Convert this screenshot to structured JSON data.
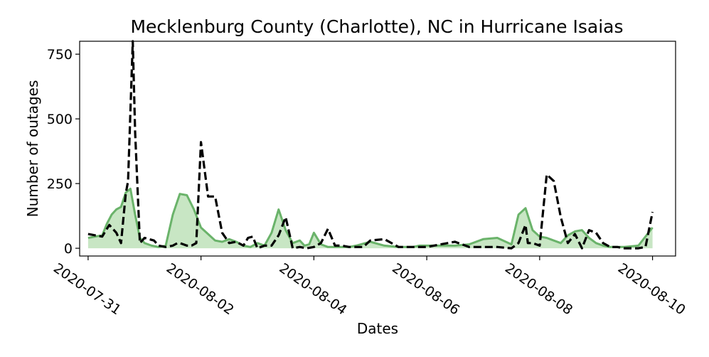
{
  "chart_data": {
    "type": "line",
    "title": "Mecklenburg County (Charlotte), NC in Hurricane Isaias",
    "xlabel": "Dates",
    "ylabel": "Number of outages",
    "x_ticks": [
      "2020-07-31",
      "2020-08-02",
      "2020-08-04",
      "2020-08-06",
      "2020-08-08",
      "2020-08-10"
    ],
    "y_ticks": [
      "0",
      "250",
      "500",
      "750"
    ],
    "ylim": [
      -30,
      800
    ],
    "xlim": [
      "2020-07-30T20:24:00",
      "2020-08-10T09:48:00"
    ],
    "grid": false,
    "legend": "none",
    "colors": {
      "smoothed_line": "#6ab36a",
      "smoothed_fill": "#c8e6c4",
      "raw_line": "#000000"
    },
    "series": [
      {
        "style": "solid-green-filled",
        "x": [
          "2020-07-31T00:00",
          "2020-07-31T03:00",
          "2020-07-31T06:00",
          "2020-07-31T08:00",
          "2020-07-31T10:00",
          "2020-07-31T12:00",
          "2020-07-31T14:00",
          "2020-07-31T16:00",
          "2020-07-31T18:00",
          "2020-07-31T20:00",
          "2020-07-31T22:00",
          "2020-08-01T00:00",
          "2020-08-01T03:00",
          "2020-08-01T06:00",
          "2020-08-01T09:00",
          "2020-08-01T12:00",
          "2020-08-01T15:00",
          "2020-08-01T18:00",
          "2020-08-01T21:00",
          "2020-08-02T00:00",
          "2020-08-02T03:00",
          "2020-08-02T06:00",
          "2020-08-02T09:00",
          "2020-08-02T12:00",
          "2020-08-02T15:00",
          "2020-08-02T18:00",
          "2020-08-02T21:00",
          "2020-08-03T00:00",
          "2020-08-03T03:00",
          "2020-08-03T06:00",
          "2020-08-03T09:00",
          "2020-08-03T12:00",
          "2020-08-03T15:00",
          "2020-08-03T18:00",
          "2020-08-03T20:00",
          "2020-08-03T22:00",
          "2020-08-04T00:00",
          "2020-08-04T03:00",
          "2020-08-04T06:00",
          "2020-08-04T09:00",
          "2020-08-04T12:00",
          "2020-08-04T15:00",
          "2020-08-04T18:00",
          "2020-08-05T00:00",
          "2020-08-05T06:00",
          "2020-08-05T12:00",
          "2020-08-05T18:00",
          "2020-08-05T21:00",
          "2020-08-06T00:00",
          "2020-08-06T06:00",
          "2020-08-06T12:00",
          "2020-08-06T18:00",
          "2020-08-07T00:00",
          "2020-08-07T06:00",
          "2020-08-07T12:00",
          "2020-08-07T15:00",
          "2020-08-07T18:00",
          "2020-08-07T21:00",
          "2020-08-08T00:00",
          "2020-08-08T03:00",
          "2020-08-08T06:00",
          "2020-08-08T09:00",
          "2020-08-08T12:00",
          "2020-08-08T15:00",
          "2020-08-08T18:00",
          "2020-08-08T21:00",
          "2020-08-09T00:00",
          "2020-08-09T03:00",
          "2020-08-09T06:00",
          "2020-08-09T09:00",
          "2020-08-09T12:00",
          "2020-08-09T18:00",
          "2020-08-10T00:00"
        ],
        "values": [
          40,
          45,
          50,
          95,
          130,
          150,
          160,
          215,
          230,
          130,
          40,
          20,
          10,
          5,
          10,
          130,
          210,
          205,
          150,
          80,
          55,
          30,
          25,
          35,
          25,
          10,
          5,
          20,
          10,
          60,
          150,
          70,
          20,
          30,
          10,
          15,
          60,
          15,
          5,
          5,
          5,
          5,
          10,
          25,
          10,
          5,
          5,
          10,
          10,
          10,
          10,
          15,
          35,
          40,
          15,
          130,
          155,
          70,
          45,
          40,
          30,
          20,
          50,
          65,
          70,
          40,
          20,
          10,
          5,
          5,
          5,
          10,
          80
        ]
      },
      {
        "style": "dashed-black",
        "x": [
          "2020-07-31T00:00",
          "2020-07-31T03:00",
          "2020-07-31T06:00",
          "2020-07-31T09:00",
          "2020-07-31T12:00",
          "2020-07-31T14:00",
          "2020-07-31T16:00",
          "2020-07-31T17:00",
          "2020-07-31T19:00",
          "2020-07-31T20:00",
          "2020-07-31T22:00",
          "2020-08-01T00:00",
          "2020-08-01T04:00",
          "2020-08-01T06:00",
          "2020-08-01T09:00",
          "2020-08-01T12:00",
          "2020-08-01T14:00",
          "2020-08-01T15:00",
          "2020-08-01T18:00",
          "2020-08-01T20:00",
          "2020-08-01T22:00",
          "2020-08-02T00:00",
          "2020-08-02T03:00",
          "2020-08-02T06:00",
          "2020-08-02T09:00",
          "2020-08-02T12:00",
          "2020-08-02T15:00",
          "2020-08-02T18:00",
          "2020-08-02T20:00",
          "2020-08-02T22:00",
          "2020-08-03T00:00",
          "2020-08-03T03:00",
          "2020-08-03T06:00",
          "2020-08-03T09:00",
          "2020-08-03T12:00",
          "2020-08-03T15:00",
          "2020-08-03T18:00",
          "2020-08-03T21:00",
          "2020-08-04T00:00",
          "2020-08-04T03:00",
          "2020-08-04T06:00",
          "2020-08-04T09:00",
          "2020-08-04T12:00",
          "2020-08-04T15:00",
          "2020-08-04T18:00",
          "2020-08-04T21:00",
          "2020-08-05T00:00",
          "2020-08-05T06:00",
          "2020-08-05T12:00",
          "2020-08-05T18:00",
          "2020-08-06T00:00",
          "2020-08-06T06:00",
          "2020-08-06T12:00",
          "2020-08-06T18:00",
          "2020-08-07T00:00",
          "2020-08-07T06:00",
          "2020-08-07T12:00",
          "2020-08-07T15:00",
          "2020-08-07T18:00",
          "2020-08-07T19:00",
          "2020-08-07T21:00",
          "2020-08-08T00:00",
          "2020-08-08T03:00",
          "2020-08-08T06:00",
          "2020-08-08T09:00",
          "2020-08-08T12:00",
          "2020-08-08T15:00",
          "2020-08-08T18:00",
          "2020-08-08T21:00",
          "2020-08-09T00:00",
          "2020-08-09T03:00",
          "2020-08-09T06:00",
          "2020-08-09T09:00",
          "2020-08-09T12:00",
          "2020-08-09T18:00",
          "2020-08-09T21:00",
          "2020-08-10T00:00"
        ],
        "values": [
          55,
          50,
          45,
          90,
          60,
          20,
          210,
          260,
          800,
          450,
          20,
          40,
          30,
          10,
          5,
          10,
          20,
          20,
          10,
          10,
          20,
          410,
          200,
          200,
          60,
          20,
          25,
          10,
          40,
          45,
          0,
          10,
          10,
          50,
          120,
          0,
          5,
          0,
          5,
          20,
          75,
          10,
          10,
          5,
          5,
          5,
          30,
          35,
          5,
          5,
          5,
          15,
          25,
          5,
          5,
          5,
          0,
          20,
          90,
          20,
          20,
          10,
          285,
          260,
          120,
          20,
          55,
          0,
          70,
          60,
          20,
          5,
          5,
          0,
          0,
          5,
          140
        ]
      }
    ]
  }
}
